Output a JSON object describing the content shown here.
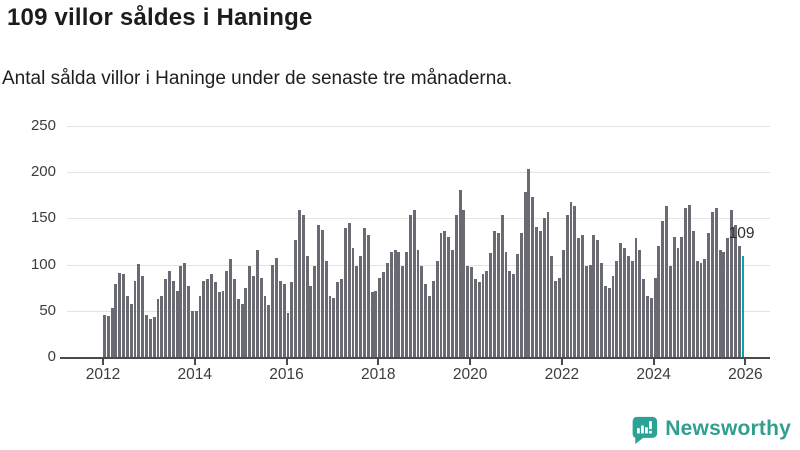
{
  "header": {
    "title": "109 villor såldes i Haninge",
    "subtitle": "Antal sålda villor i Haninge under de senaste tre månaderna."
  },
  "footer": {
    "brand": "Newsworthy",
    "logo_icon": "newsworthy-speech-bubble-bar-chart-icon"
  },
  "colors": {
    "bar": "#6a6b72",
    "highlight": "#0aa2ab",
    "grid": "#e3e3e3",
    "axis": "#4a4a4b",
    "title_text": "#1c1c1c",
    "tick_text": "#3d3d3d",
    "brand_teal": "#2f9f8e"
  },
  "chart_data": {
    "type": "bar",
    "title": "109 villor såldes i Haninge",
    "subtitle": "Antal sålda villor i Haninge under de senaste tre månaderna.",
    "xlabel": "",
    "ylabel": "",
    "ylim": [
      0,
      250
    ],
    "grid": true,
    "frequency": "monthly",
    "start_period": "2012-01",
    "end_period": "2025-12",
    "y_ticks": [
      0,
      50,
      100,
      150,
      200,
      250
    ],
    "x_tick_labels": [
      "2012",
      "2014",
      "2016",
      "2018",
      "2020",
      "2022",
      "2024",
      "2026"
    ],
    "highlight": {
      "index": 167,
      "value": 109,
      "label": "109"
    },
    "values": [
      46,
      44,
      53,
      79,
      91,
      90,
      66,
      57,
      82,
      101,
      88,
      45,
      41,
      43,
      63,
      66,
      84,
      93,
      82,
      72,
      98,
      102,
      77,
      50,
      50,
      66,
      82,
      84,
      90,
      81,
      70,
      72,
      93,
      106,
      84,
      63,
      57,
      75,
      98,
      88,
      116,
      86,
      66,
      56,
      100,
      107,
      82,
      79,
      48,
      81,
      127,
      159,
      154,
      109,
      77,
      98,
      143,
      138,
      104,
      66,
      64,
      81,
      84,
      140,
      145,
      118,
      98,
      109,
      140,
      132,
      70,
      72,
      86,
      92,
      102,
      114,
      116,
      114,
      98,
      114,
      154,
      159,
      116,
      98,
      79,
      66,
      82,
      104,
      134,
      136,
      130,
      116,
      154,
      181,
      159,
      98,
      97,
      84,
      81,
      90,
      93,
      113,
      136,
      134,
      154,
      114,
      93,
      90,
      111,
      134,
      179,
      204,
      173,
      141,
      136,
      150,
      157,
      109,
      82,
      86,
      116,
      154,
      168,
      163,
      129,
      132,
      98,
      100,
      132,
      127,
      102,
      77,
      75,
      88,
      104,
      123,
      118,
      109,
      104,
      129,
      116,
      84,
      66,
      64,
      86,
      120,
      147,
      163,
      98,
      130,
      118,
      130,
      161,
      165,
      136,
      104,
      102,
      106,
      134,
      157,
      161,
      116,
      114,
      129,
      159,
      143,
      120,
      109
    ]
  }
}
